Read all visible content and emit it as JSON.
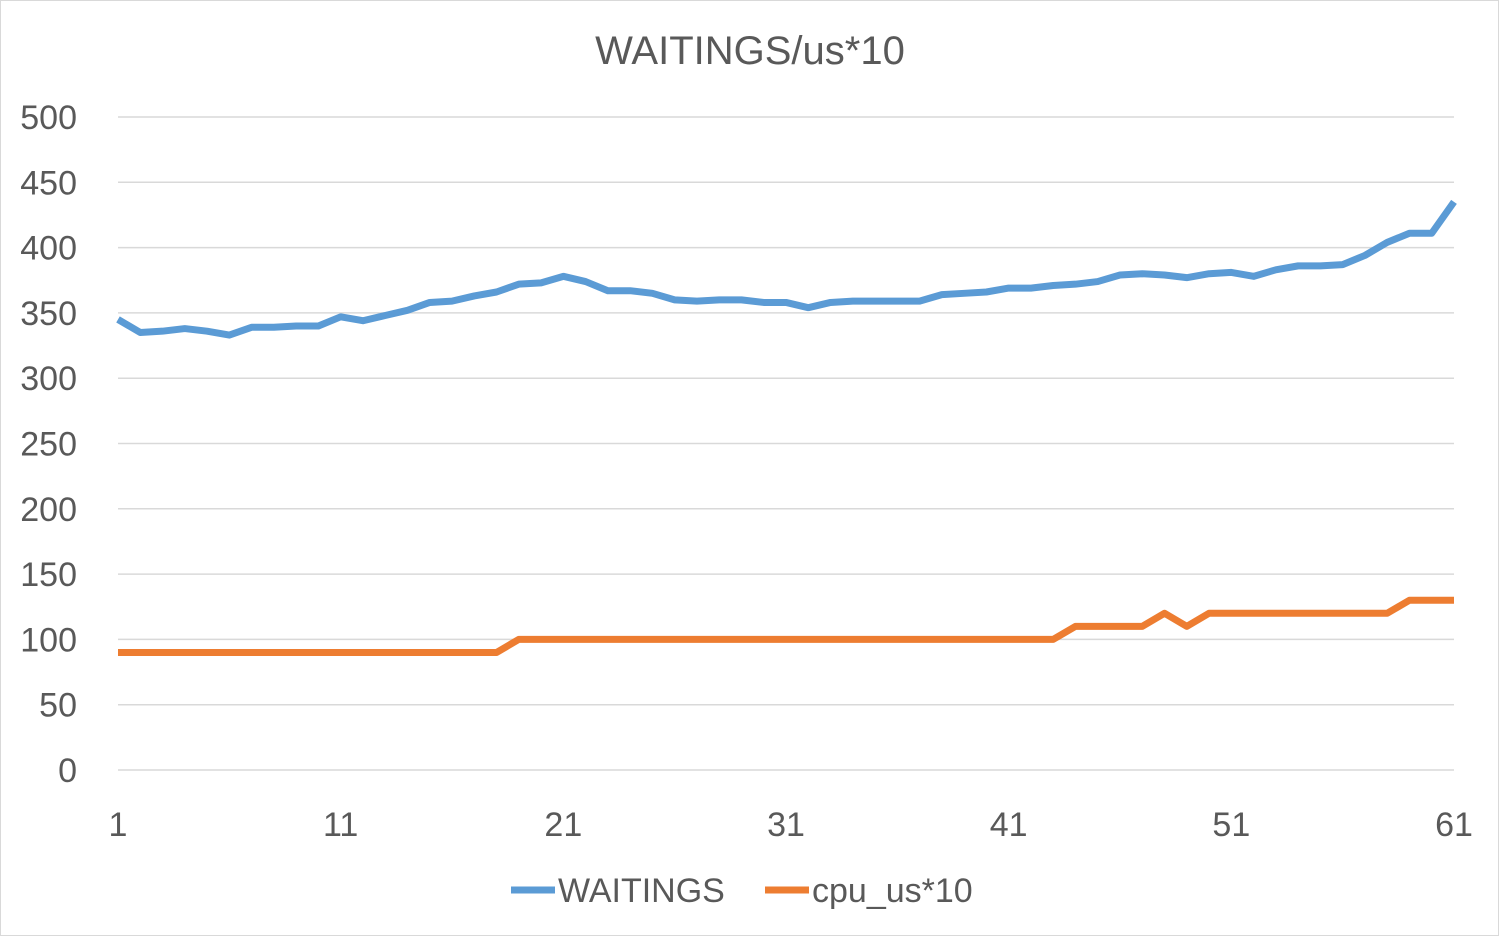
{
  "chart_data": {
    "type": "line",
    "title": "WAITINGS/us*10",
    "xlabel": "",
    "ylabel": "",
    "ylim": [
      0,
      500
    ],
    "y_ticks": [
      "0",
      "50",
      "100",
      "150",
      "200",
      "250",
      "300",
      "350",
      "400",
      "450",
      "500"
    ],
    "x_range": [
      1,
      61
    ],
    "x_ticks": [
      "1",
      "11",
      "21",
      "31",
      "41",
      "51",
      "61"
    ],
    "grid": true,
    "legend_position": "bottom",
    "x": [
      1,
      2,
      3,
      4,
      5,
      6,
      7,
      8,
      9,
      10,
      11,
      12,
      13,
      14,
      15,
      16,
      17,
      18,
      19,
      20,
      21,
      22,
      23,
      24,
      25,
      26,
      27,
      28,
      29,
      30,
      31,
      32,
      33,
      34,
      35,
      36,
      37,
      38,
      39,
      40,
      41,
      42,
      43,
      44,
      45,
      46,
      47,
      48,
      49,
      50,
      51,
      52,
      53,
      54,
      55,
      56,
      57,
      58,
      59,
      60,
      61
    ],
    "series": [
      {
        "name": "WAITINGS",
        "color": "#5b9bd5",
        "values": [
          345,
          335,
          336,
          338,
          336,
          333,
          339,
          339,
          340,
          340,
          347,
          344,
          348,
          352,
          358,
          359,
          363,
          366,
          372,
          373,
          378,
          374,
          367,
          367,
          365,
          360,
          359,
          360,
          360,
          358,
          358,
          354,
          358,
          359,
          359,
          359,
          359,
          364,
          365,
          366,
          369,
          369,
          371,
          372,
          374,
          379,
          380,
          379,
          377,
          380,
          381,
          378,
          383,
          386,
          386,
          387,
          394,
          404,
          411,
          411,
          435
        ]
      },
      {
        "name": "cpu_us*10",
        "color": "#ed7d31",
        "values": [
          90,
          90,
          90,
          90,
          90,
          90,
          90,
          90,
          90,
          90,
          90,
          90,
          90,
          90,
          90,
          90,
          90,
          90,
          100,
          100,
          100,
          100,
          100,
          100,
          100,
          100,
          100,
          100,
          100,
          100,
          100,
          100,
          100,
          100,
          100,
          100,
          100,
          100,
          100,
          100,
          100,
          100,
          100,
          110,
          110,
          110,
          110,
          120,
          110,
          120,
          120,
          120,
          120,
          120,
          120,
          120,
          120,
          120,
          130,
          130,
          130
        ]
      }
    ]
  }
}
